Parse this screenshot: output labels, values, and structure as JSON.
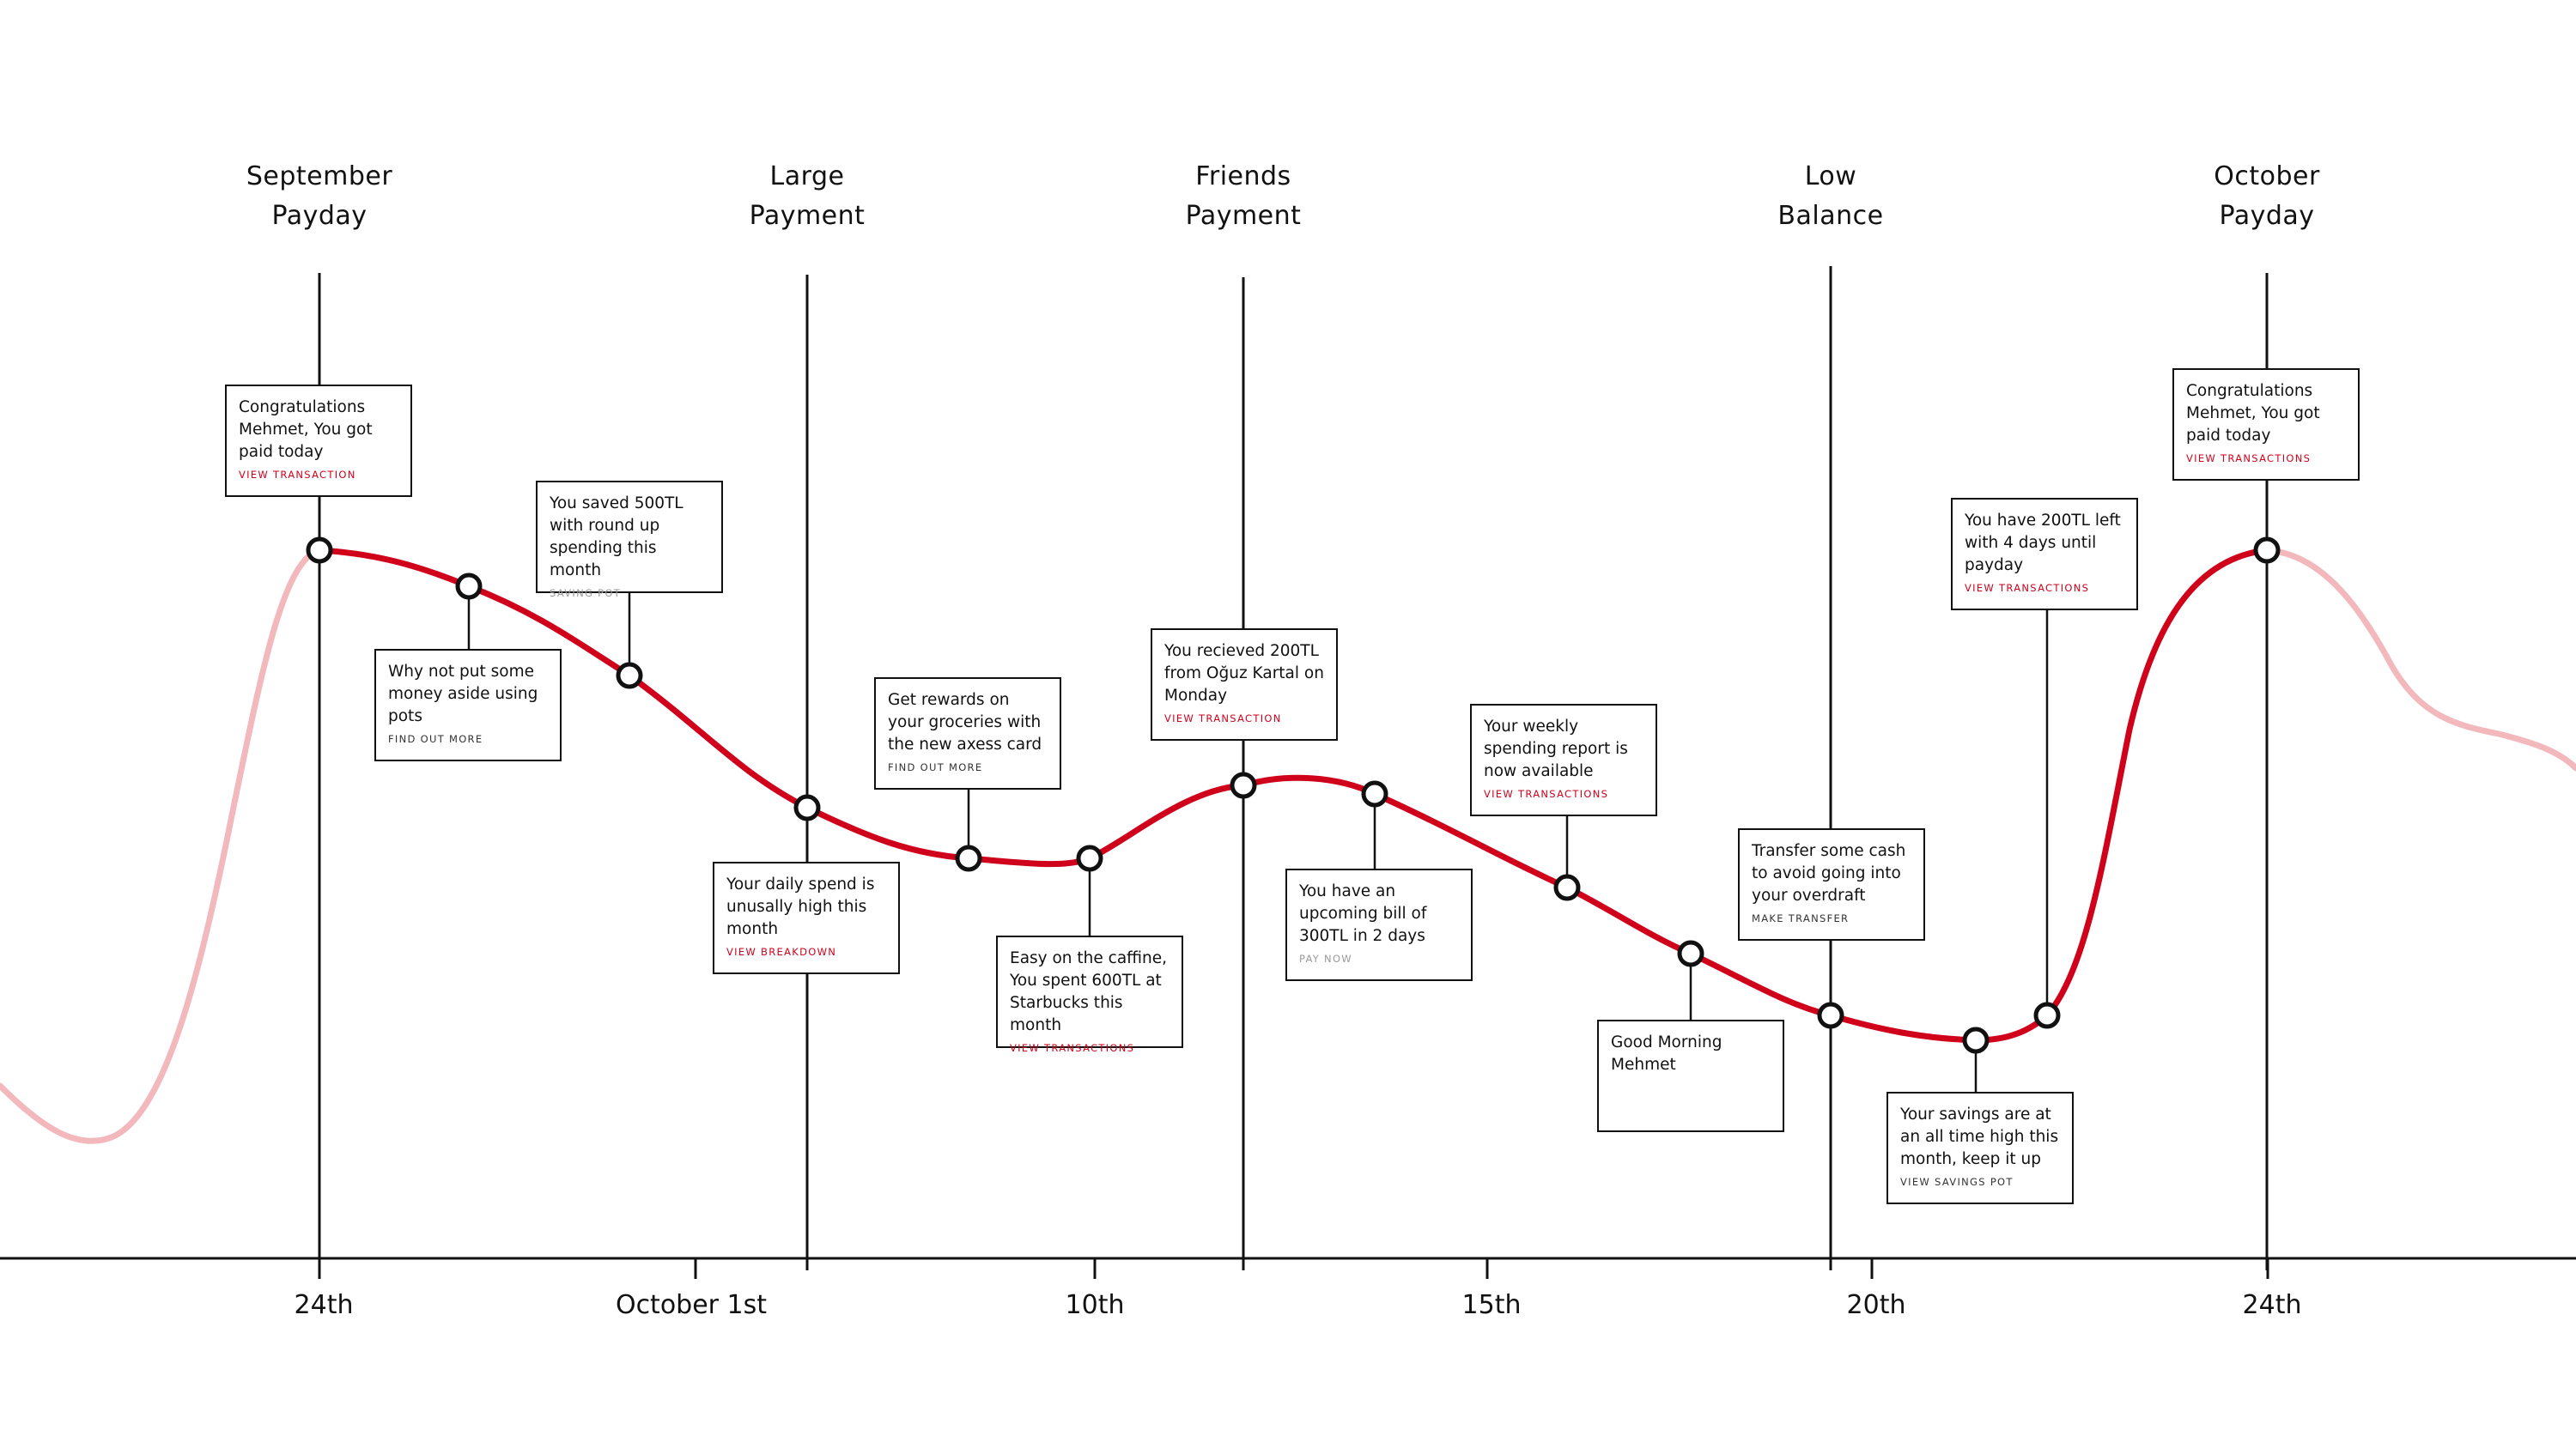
{
  "colors": {
    "accent": "#d0021b",
    "accent_faded": "#f2b8bc",
    "ink": "#111111"
  },
  "events": [
    {
      "line1": "September",
      "line2": "Payday"
    },
    {
      "line1": "Large",
      "line2": "Payment"
    },
    {
      "line1": "Friends",
      "line2": "Payment"
    },
    {
      "line1": "Low",
      "line2": "Balance"
    },
    {
      "line1": "October",
      "line2": "Payday"
    }
  ],
  "axis_ticks": [
    "24th",
    "October 1st",
    "10th",
    "15th",
    "20th",
    "24th"
  ],
  "cards": [
    {
      "text": "Congratulations Mehmet, You got paid today",
      "action": "VIEW TRANSACTION"
    },
    {
      "text": "Why not put some money aside using pots",
      "action": "FIND OUT MORE"
    },
    {
      "text": "You saved 500TL with round up spending this month",
      "action": "SAVING POT"
    },
    {
      "text": "Your daily spend is unusally high this month",
      "action": "VIEW BREAKDOWN"
    },
    {
      "text": "Get rewards on your groceries with the new axess card",
      "action": "FIND OUT MORE"
    },
    {
      "text": "Easy on the caffine, You spent 600TL at Starbucks this month",
      "action": "VIEW TRANSACTIONS"
    },
    {
      "text": "You recieved 200TL from Oğuz Kartal on Monday",
      "action": "VIEW TRANSACTION"
    },
    {
      "text": "You have an upcoming bill of 300TL in 2 days",
      "action": "PAY NOW"
    },
    {
      "text": "Your weekly spending report is now available",
      "action": "VIEW TRANSACTIONS"
    },
    {
      "text": "Good Morning Mehmet",
      "action": ""
    },
    {
      "text": "Transfer some cash to avoid going into your overdraft",
      "action": "MAKE TRANSFER"
    },
    {
      "text": "Your savings are at an all time high this month, keep it up",
      "action": "VIEW SAVINGS POT"
    },
    {
      "text": "You have 200TL left with 4 days until payday",
      "action": "VIEW TRANSACTIONS"
    },
    {
      "text": "Congratulations Mehmet, You got paid today",
      "action": "VIEW TRANSACTIONS"
    }
  ]
}
